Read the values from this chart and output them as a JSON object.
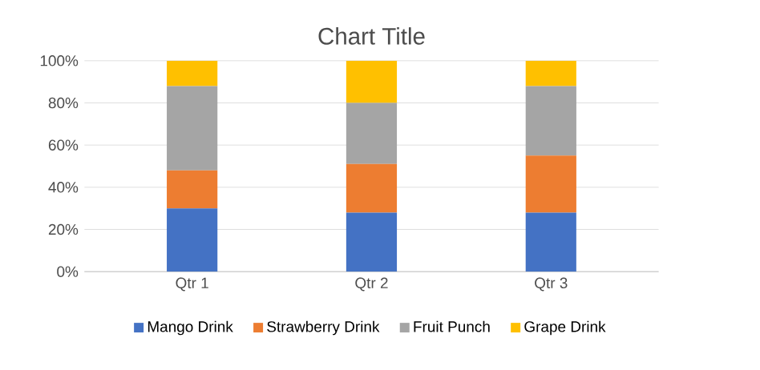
{
  "chart_data": {
    "type": "bar",
    "stacked": true,
    "title": "Chart Title",
    "categories": [
      "Qtr 1",
      "Qtr 2",
      "Qtr 3"
    ],
    "series": [
      {
        "name": "Mango Drink",
        "color": "#4472c4",
        "values": [
          30,
          28,
          28
        ]
      },
      {
        "name": "Strawberry Drink",
        "color": "#ed7d31",
        "values": [
          18,
          23,
          27
        ]
      },
      {
        "name": "Fruit Punch",
        "color": "#a5a5a5",
        "values": [
          40,
          29,
          33
        ]
      },
      {
        "name": "Grape Drink",
        "color": "#ffc000",
        "values": [
          12,
          20,
          12
        ]
      }
    ],
    "ylim": [
      0,
      100
    ],
    "yticks": [
      {
        "value": 0,
        "label": "0%"
      },
      {
        "value": 20,
        "label": "20%"
      },
      {
        "value": 40,
        "label": "40%"
      },
      {
        "value": 60,
        "label": "60%"
      },
      {
        "value": 80,
        "label": "80%"
      },
      {
        "value": 100,
        "label": "100%"
      }
    ],
    "grid": "y",
    "legend": "bottom"
  }
}
